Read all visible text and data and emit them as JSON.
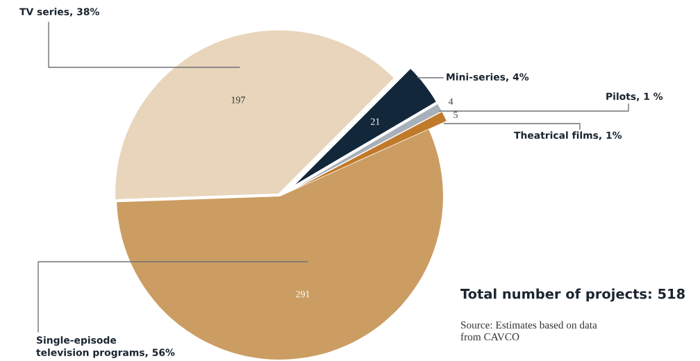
{
  "chart_data": {
    "type": "pie",
    "categories": [
      "TV series, 38%",
      "Mini-series, 4%",
      "Pilots, 1 %",
      "Theatrical films, 1%",
      "Single-episode\ntelevision programs, 56%"
    ],
    "values": [
      197,
      21,
      4,
      5,
      291
    ],
    "colors": [
      "#e8d5bb",
      "#13273a",
      "#a7b0ba",
      "#c07a2a",
      "#cb9d62"
    ],
    "data_labels": true,
    "legend": false,
    "annotations": [
      "Total number of projects: 518",
      "Source: Estimates based on data\nfrom CAVCO"
    ]
  }
}
